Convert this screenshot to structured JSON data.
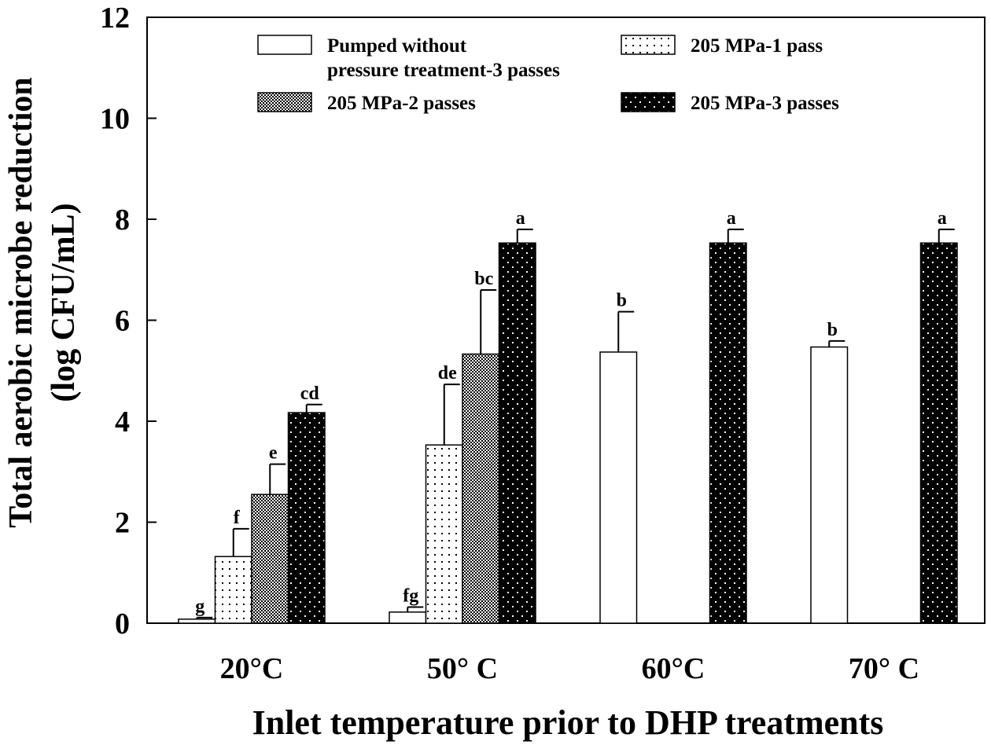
{
  "chart_data": {
    "type": "bar",
    "xlabel": "Inlet temperature prior to DHP treatments",
    "ylabel_line1": "Total aerobic microbe reduction",
    "ylabel_line2": "(log CFU/mL)",
    "ylim": [
      0,
      12
    ],
    "yticks": [
      0,
      2,
      4,
      6,
      8,
      10,
      12
    ],
    "categories": [
      "20°C",
      "50° C",
      "60°C",
      "70° C"
    ],
    "legend_position": "top",
    "series": [
      {
        "name": "Pumped without pressure treatment-3 passes",
        "name_line1": "Pumped without",
        "name_line2": "pressure treatment-3 passes",
        "pattern": "white",
        "values": [
          0.08,
          0.22,
          5.37,
          5.47
        ],
        "errors": [
          0.03,
          0.1,
          0.8,
          0.12
        ],
        "labels": [
          "g",
          "fg",
          "b",
          "b"
        ]
      },
      {
        "name": "205 MPa-1 pass",
        "pattern": "sparse-dots",
        "values": [
          1.32,
          3.53,
          null,
          null
        ],
        "errors": [
          0.55,
          1.2,
          null,
          null
        ],
        "labels": [
          "f",
          "de",
          "",
          ""
        ]
      },
      {
        "name": "205 MPa-2 passes",
        "pattern": "checker",
        "values": [
          2.55,
          5.33,
          null,
          null
        ],
        "errors": [
          0.6,
          1.27,
          null,
          null
        ],
        "labels": [
          "e",
          "bc",
          "",
          ""
        ]
      },
      {
        "name": "205 MPa-3 passes",
        "pattern": "black-dots",
        "values": [
          4.17,
          7.53,
          7.53,
          7.53
        ],
        "errors": [
          0.16,
          0.27,
          0.27,
          0.27
        ],
        "labels": [
          "cd",
          "a",
          "a",
          "a"
        ]
      }
    ]
  }
}
